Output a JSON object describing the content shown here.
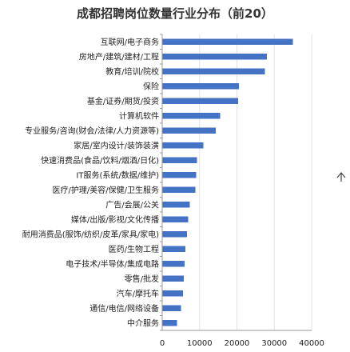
{
  "chart_data": {
    "type": "bar",
    "orientation": "horizontal",
    "title": "成都招聘岗位数量行业分布（前20）",
    "xlabel": "",
    "ylabel": "",
    "xlim": [
      0,
      40000
    ],
    "x_ticks": [
      "0",
      "10000",
      "20000",
      "30000",
      "40000"
    ],
    "grid": true,
    "legend": "none",
    "categories": [
      "互联网/电子商务",
      "房地产/建筑/建材/工程",
      "教育/培训/院校",
      "保险",
      "基金/证券/期货/投资",
      "计算机软件",
      "专业服务/咨询(财会/法律/人力资源等)",
      "家居/室内设计/装饰装潢",
      "快速消费品(食品/饮料/烟酒/日化)",
      "IT服务(系统/数据/维护)",
      "医疗/护理/美容/保健/卫生服务",
      "广告/会展/公关",
      "媒体/出版/影视/文化传播",
      "耐用消费品(服饰/纺织/皮革/家具/家电)",
      "医药/生物工程",
      "电子技术/半导体/集成电路",
      "零售/批发",
      "汽车/摩托车",
      "通信/电信/网络设备",
      "中介服务"
    ],
    "values": [
      35000,
      28000,
      27500,
      20500,
      20300,
      15500,
      14300,
      11000,
      9300,
      9100,
      8900,
      7400,
      7000,
      6600,
      6200,
      6000,
      5800,
      5600,
      5000,
      4000
    ],
    "colors": {
      "bar": "#4472c4",
      "axis": "#999999",
      "grid": "#e2e2e2",
      "text": "#222222",
      "title": "#333333"
    }
  },
  "ui": {
    "scroll_icon": "chevron-up-icon"
  }
}
